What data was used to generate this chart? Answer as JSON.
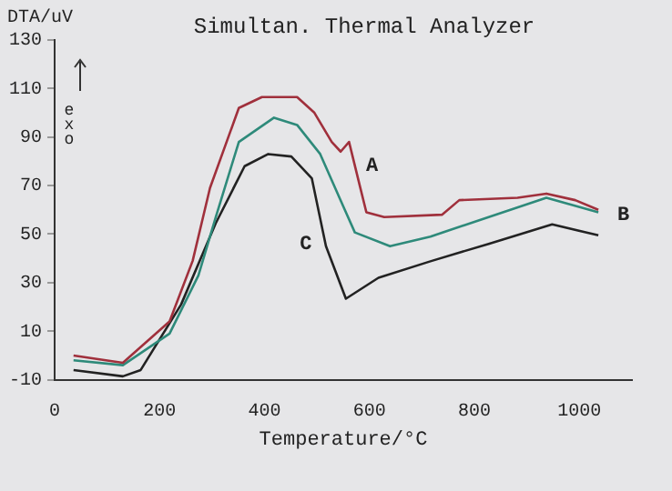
{
  "chart_data": {
    "type": "line",
    "title": "Simultan. Thermal Analyzer",
    "ylabel": "DTA/uV",
    "xlabel": "Temperature/°C",
    "xlim": [
      0,
      1100
    ],
    "xticks": [
      0,
      200,
      400,
      600,
      800,
      1000
    ],
    "ylim": [
      -10,
      130
    ],
    "yticks": [
      -10,
      10,
      30,
      50,
      70,
      90,
      110,
      130
    ],
    "grid": false,
    "legend": false,
    "marker": "none",
    "line_style": "solid",
    "series": [
      {
        "color": "#a0303c",
        "x": [
          36,
          130,
          219,
          263,
          296,
          351,
          395,
          462,
          495,
          528,
          545,
          561,
          583,
          594,
          628,
          738,
          771,
          882,
          937,
          992,
          1036
        ],
        "values": [
          0,
          -3,
          14,
          39,
          69,
          102,
          106.5,
          106.5,
          100,
          88,
          84,
          88,
          68.6,
          59,
          57,
          58,
          64,
          65,
          66.7,
          64,
          60
        ]
      },
      {
        "color": "#2e8a7a",
        "x": [
          36,
          130,
          219,
          274,
          307,
          351,
          418,
          462,
          506,
          550,
          572,
          639,
          716,
          827,
          937,
          1036
        ],
        "values": [
          -2,
          -4,
          9,
          33,
          57,
          88,
          98,
          95,
          83,
          61.4,
          50.7,
          45,
          49,
          57,
          65,
          59
        ]
      },
      {
        "color": "#222222",
        "x": [
          36,
          130,
          164,
          241,
          307,
          362,
          407,
          451,
          490,
          517,
          555,
          617,
          716,
          827,
          948,
          1036
        ],
        "values": [
          -6,
          -8.6,
          -6,
          21,
          54.5,
          78,
          83,
          82,
          73,
          45,
          23.4,
          32,
          38.8,
          46,
          54,
          49.5
        ]
      }
    ],
    "annotations": [
      "A",
      "B",
      "C",
      "exo"
    ]
  }
}
